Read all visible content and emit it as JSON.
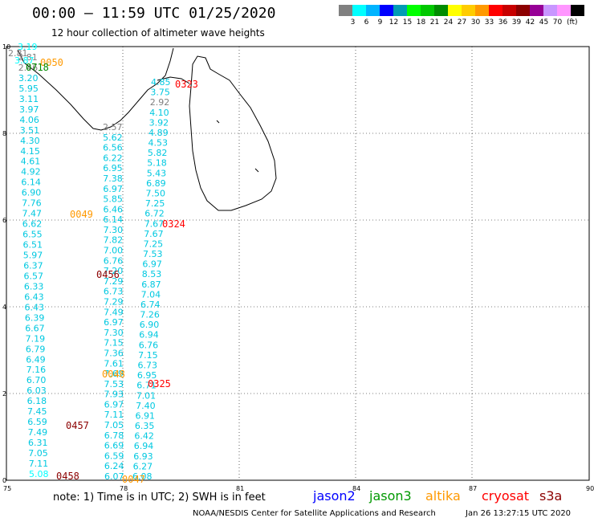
{
  "header": {
    "title": "00:00 – 11:59 UTC 01/25/2020",
    "subtitle": "12 hour collection of altimeter wave heights"
  },
  "legend": {
    "colors": [
      "#808080",
      "#00ffff",
      "#00b4ff",
      "#0000ff",
      "#009bb4",
      "#00ff00",
      "#00c800",
      "#008c00",
      "#ffff00",
      "#ffcc00",
      "#ff9900",
      "#ff0000",
      "#c80000",
      "#8c0000",
      "#960096",
      "#c896ff",
      "#ff96ff",
      "#000000"
    ],
    "labels": [
      "3",
      "6",
      "9",
      "12",
      "15",
      "18",
      "21",
      "24",
      "27",
      "30",
      "33",
      "36",
      "39",
      "42",
      "45",
      "70"
    ],
    "unit": "(ft)"
  },
  "axes": {
    "lon_ticks": [
      "75",
      "78",
      "81",
      "84",
      "87",
      "90"
    ],
    "lat_ticks": [
      "10",
      "8",
      "6",
      "4",
      "2",
      "0"
    ]
  },
  "tracks": [
    {
      "time": "0458",
      "time_color": "#8c0000",
      "values": [
        "5.08",
        "7.11",
        "7.05",
        "6.31",
        "7.49",
        "6.59",
        "7.45",
        "6.18",
        "6.03",
        "6.70",
        "7.16",
        "6.49",
        "6.79",
        "7.19",
        "6.67",
        "6.39",
        "6.43",
        "6.43",
        "6.33",
        "6.57",
        "6.37",
        "5.97",
        "6.51",
        "6.55",
        "6.62",
        "7.47",
        "7.76",
        "6.90",
        "6.14",
        "4.92",
        "4.61",
        "4.15",
        "4.30",
        "3.51",
        "4.06",
        "3.97",
        "3.11",
        "5.95",
        "3.20",
        "2.46",
        "2.81",
        "3.19"
      ],
      "colors": [
        "#00ffff",
        "#00c8e0",
        "#00c8e0",
        "#00c8e0",
        "#00c8e0",
        "#00c8e0",
        "#00c8e0",
        "#00c8e0",
        "#00c8e0",
        "#00c8e0",
        "#00c8e0",
        "#00c8e0",
        "#00c8e0",
        "#00c8e0",
        "#00c8e0",
        "#00c8e0",
        "#00c8e0",
        "#00c8e0",
        "#00c8e0",
        "#00c8e0",
        "#00c8e0",
        "#00c8e0",
        "#00c8e0",
        "#00c8e0",
        "#00c8e0",
        "#00c8e0",
        "#00c8e0",
        "#00c8e0",
        "#00c8e0",
        "#00c8e0",
        "#00c8e0",
        "#00c8e0",
        "#00c8e0",
        "#00c8e0",
        "#00c8e0",
        "#00c8e0",
        "#00c8e0",
        "#00c8e0",
        "#00c8e0",
        "#808080",
        "#808080",
        "#00ffff"
      ]
    },
    {
      "time": "0457",
      "time_color": "#8c0000",
      "values": [
        "6.07",
        "6.24",
        "6.59",
        "6.69",
        "6.78",
        "7.05",
        "7.11",
        "6.97",
        "7.93",
        "7.53",
        "7.69",
        "7.61",
        "7.36",
        "7.15",
        "7.30",
        "6.97",
        "7.49",
        "7.29",
        "6.73",
        "7.29",
        "7.20",
        "6.76",
        "7.00",
        "7.82",
        "7.30",
        "6.14",
        "6.46",
        "5.85",
        "6.97",
        "7.38",
        "6.95",
        "6.22",
        "6.56",
        "5.62",
        "2.57"
      ],
      "colors": [
        "#00c8e0",
        "#00c8e0",
        "#00c8e0",
        "#00c8e0",
        "#00c8e0",
        "#00c8e0",
        "#00c8e0",
        "#00c8e0",
        "#00c8e0",
        "#00c8e0",
        "#00c8e0",
        "#00c8e0",
        "#00c8e0",
        "#00c8e0",
        "#00c8e0",
        "#00c8e0",
        "#00c8e0",
        "#00c8e0",
        "#00c8e0",
        "#00c8e0",
        "#00c8e0",
        "#00c8e0",
        "#00c8e0",
        "#00c8e0",
        "#00c8e0",
        "#00c8e0",
        "#00c8e0",
        "#00c8e0",
        "#00c8e0",
        "#00c8e0",
        "#00c8e0",
        "#00c8e0",
        "#00c8e0",
        "#00c8e0",
        "#808080"
      ]
    },
    {
      "time": "0456",
      "time_color": "#8c0000",
      "values": [
        "6.08",
        "6.27",
        "6.93",
        "6.94",
        "6.42",
        "6.35",
        "6.91",
        "7.40",
        "7.01",
        "6.71",
        "6.95",
        "6.73",
        "7.15",
        "6.76",
        "6.94",
        "6.90",
        "7.26",
        "6.74",
        "7.04",
        "6.87",
        "8.53",
        "6.97",
        "7.53",
        "7.25",
        "7.67",
        "7.67",
        "6.72",
        "7.25",
        "7.50",
        "6.89",
        "5.43",
        "5.18",
        "5.82",
        "4.53",
        "4.89",
        "3.92",
        "4.10",
        "2.92",
        "3.75",
        "4.85"
      ],
      "colors": [
        "#00c8e0",
        "#00c8e0",
        "#00c8e0",
        "#00c8e0",
        "#00c8e0",
        "#00c8e0",
        "#00c8e0",
        "#00c8e0",
        "#00c8e0",
        "#00c8e0",
        "#00c8e0",
        "#00c8e0",
        "#00c8e0",
        "#00c8e0",
        "#00c8e0",
        "#00c8e0",
        "#00c8e0",
        "#00c8e0",
        "#00c8e0",
        "#00c8e0",
        "#00c8e0",
        "#00c8e0",
        "#00c8e0",
        "#00c8e0",
        "#00c8e0",
        "#00c8e0",
        "#00c8e0",
        "#00c8e0",
        "#00c8e0",
        "#00c8e0",
        "#00c8e0",
        "#00c8e0",
        "#00c8e0",
        "#00c8e0",
        "#00c8e0",
        "#00c8e0",
        "#00c8e0",
        "#808080",
        "#00c8e0",
        "#00c8e0"
      ]
    }
  ],
  "extra_values": [
    {
      "text": "3.87",
      "color": "#00ffff"
    },
    {
      "text": "2.81",
      "color": "#808080"
    }
  ],
  "time_labels": [
    {
      "text": "0323",
      "color": "#ff0000"
    },
    {
      "text": "0324",
      "color": "#ff0000"
    },
    {
      "text": "0325",
      "color": "#ff0000"
    },
    {
      "text": "0047",
      "color": "#ff9900"
    },
    {
      "text": "0048",
      "color": "#ff9900"
    },
    {
      "text": "0049",
      "color": "#ff9900"
    },
    {
      "text": "0050",
      "color": "#ff9900"
    },
    {
      "text": "0718",
      "color": "#008c00"
    }
  ],
  "note": "note:  1) Time is in UTC;  2) SWH is in feet",
  "satellites": [
    {
      "name": "jason2",
      "color": "#0000ff"
    },
    {
      "name": "jason3",
      "color": "#009900"
    },
    {
      "name": "altika",
      "color": "#ff9900"
    },
    {
      "name": "cryosat",
      "color": "#ff0000"
    },
    {
      "name": "s3a",
      "color": "#8c0000"
    }
  ],
  "footer_left": "NOAA/NESDIS Center for Satellite Applications and Research",
  "footer_right": "Jan 26 13:27:15 UTC 2020"
}
